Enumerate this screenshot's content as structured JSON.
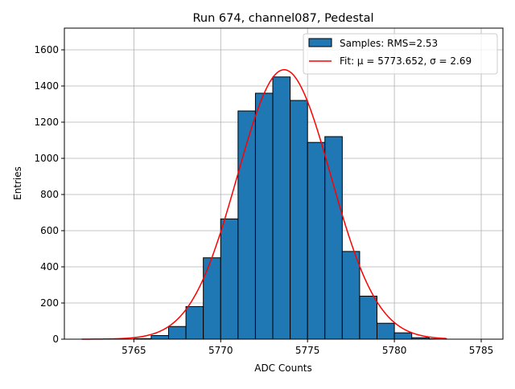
{
  "chart_data": {
    "type": "bar",
    "title": "Run 674, channel087, Pedestal",
    "xlabel": "ADC Counts",
    "ylabel": "Entries",
    "xlim": [
      5761,
      5786.25
    ],
    "ylim": [
      0,
      1720
    ],
    "grid": true,
    "legend_placement": "top-right",
    "x_ticks": [
      5765,
      5770,
      5775,
      5780,
      5785
    ],
    "y_ticks": [
      0,
      200,
      400,
      600,
      800,
      1000,
      1200,
      1400,
      1600
    ],
    "bin_width": 1,
    "bins": [
      5765,
      5766,
      5767,
      5768,
      5769,
      5770,
      5771,
      5772,
      5773,
      5774,
      5775,
      5776,
      5777,
      5778,
      5779,
      5780,
      5781,
      5782
    ],
    "values": [
      3,
      20,
      70,
      180,
      450,
      665,
      1262,
      1360,
      1450,
      1320,
      1088,
      1120,
      485,
      238,
      88,
      35,
      8,
      2
    ],
    "bar_color": "#1f77b4",
    "fit": {
      "mu": 5773.652,
      "sigma": 2.69,
      "amplitude": 1490,
      "range": [
        5762,
        5783
      ],
      "color": "#ff0000"
    },
    "legend": [
      {
        "label": "Samples: RMS=2.53",
        "kind": "patch"
      },
      {
        "label": "Fit: μ = 5773.652, σ = 2.69",
        "kind": "line"
      }
    ]
  }
}
